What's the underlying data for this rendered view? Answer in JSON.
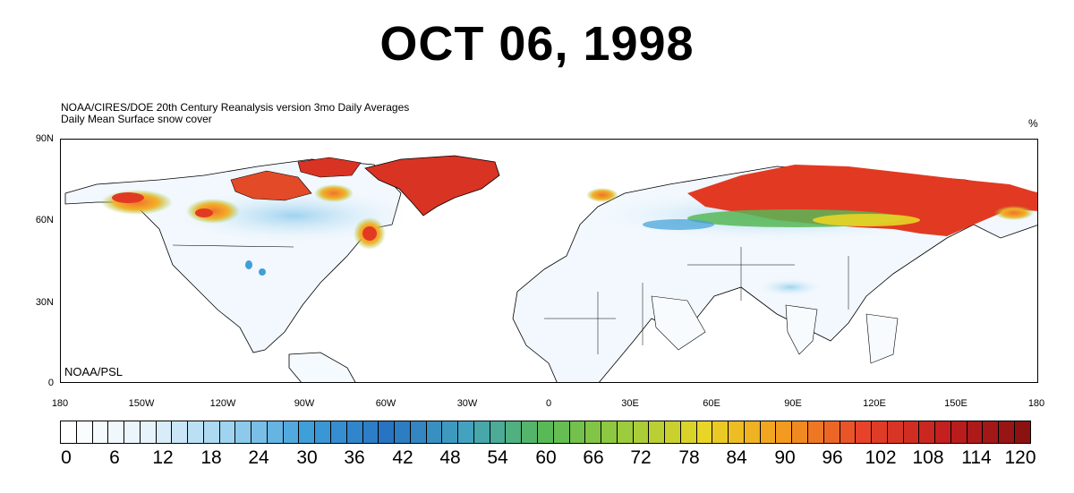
{
  "title": "OCT 06, 1998",
  "subtitle_line1": "NOAA/CIRES/DOE 20th Century Reanalysis version 3mo Daily Averages",
  "subtitle_line2": "Daily Mean  Surface snow cover",
  "units": "%",
  "credit": "NOAA/PSL",
  "map": {
    "projection": "cylindrical-equidistant",
    "lon_range": [
      -180,
      180
    ],
    "lat_range": [
      0,
      90
    ],
    "y_ticks": [
      "90N",
      "60N",
      "30N",
      "0"
    ],
    "x_ticks": [
      "180",
      "150W",
      "120W",
      "90W",
      "60W",
      "30W",
      "0",
      "30E",
      "60E",
      "90E",
      "120E",
      "150E",
      "180"
    ],
    "snow_regions": [
      "Greenland",
      "northern Siberia",
      "Canadian Arctic",
      "Alaska",
      "Labrador/Quebec",
      "northern Scandinavia"
    ]
  },
  "colorbar": {
    "labels": [
      "0",
      "6",
      "12",
      "18",
      "24",
      "30",
      "36",
      "42",
      "48",
      "54",
      "60",
      "66",
      "72",
      "78",
      "84",
      "90",
      "96",
      "102",
      "108",
      "114",
      "120"
    ],
    "min": 0,
    "max": 120,
    "step": 2,
    "colors": [
      "#ffffff",
      "#e6f3fb",
      "#9fd3ef",
      "#3f9fd9",
      "#2874c2",
      "#43a2c0",
      "#58b956",
      "#9ccb3c",
      "#e8d526",
      "#f49a1f",
      "#e6432a",
      "#c3201f",
      "#8c1212"
    ]
  }
}
